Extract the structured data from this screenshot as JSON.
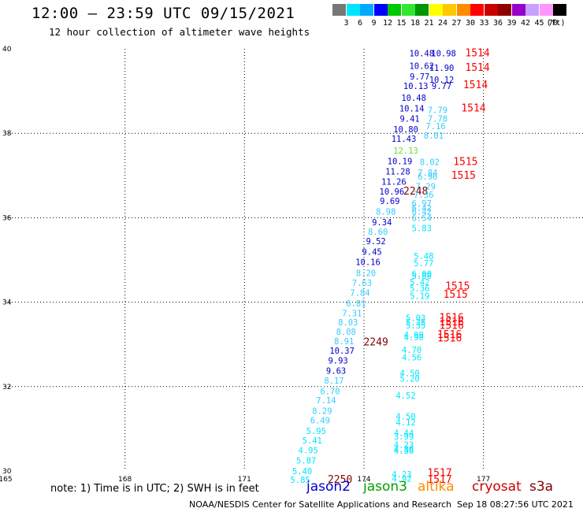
{
  "header": {
    "title": "12:00 – 23:59 UTC 09/15/2021",
    "subtitle": "12 hour collection of altimeter wave heights"
  },
  "color_scale": {
    "unit": "(ft)",
    "bins": [
      {
        "label": "3",
        "color": "#777777"
      },
      {
        "label": "6",
        "color": "#00e5ff"
      },
      {
        "label": "9",
        "color": "#00aaff"
      },
      {
        "label": "12",
        "color": "#0000ff"
      },
      {
        "label": "15",
        "color": "#00c800"
      },
      {
        "label": "18",
        "color": "#32e632"
      },
      {
        "label": "21",
        "color": "#009600"
      },
      {
        "label": "24",
        "color": "#ffff00"
      },
      {
        "label": "27",
        "color": "#ffc800"
      },
      {
        "label": "30",
        "color": "#ff8c00"
      },
      {
        "label": "33",
        "color": "#ff0000"
      },
      {
        "label": "36",
        "color": "#c80000"
      },
      {
        "label": "39",
        "color": "#8c0000"
      },
      {
        "label": "42",
        "color": "#9600c8"
      },
      {
        "label": "45",
        "color": "#c8a0ff"
      },
      {
        "label": "70",
        "color": "#ff96ff"
      },
      {
        "label": "",
        "color": "#000000"
      }
    ]
  },
  "map": {
    "lon_min": 165,
    "lon_max": 179.5,
    "lat_min": 30,
    "lat_max": 40,
    "lon_ticks": [
      "165",
      "168",
      "171",
      "174",
      "177"
    ],
    "lat_ticks": [
      "40",
      "38",
      "36",
      "34",
      "32",
      "30"
    ]
  },
  "wave_labels": [
    {
      "lon": 175.45,
      "lat": 39.82,
      "text": "10.48",
      "color": "#0000cc"
    },
    {
      "lon": 176.0,
      "lat": 39.82,
      "text": "10.98",
      "color": "#0000cc"
    },
    {
      "lon": 176.85,
      "lat": 39.82,
      "text": "1514",
      "color": "#ff0000"
    },
    {
      "lon": 175.45,
      "lat": 39.52,
      "text": "10.62",
      "color": "#0000cc"
    },
    {
      "lon": 175.95,
      "lat": 39.48,
      "text": "11.90",
      "color": "#0000cc"
    },
    {
      "lon": 176.85,
      "lat": 39.48,
      "text": "1514",
      "color": "#ff0000"
    },
    {
      "lon": 175.4,
      "lat": 39.27,
      "text": "9.77",
      "color": "#0000cc"
    },
    {
      "lon": 175.95,
      "lat": 39.2,
      "text": "10.12",
      "color": "#0000cc"
    },
    {
      "lon": 175.3,
      "lat": 39.05,
      "text": "10.13",
      "color": "#0000cc"
    },
    {
      "lon": 175.95,
      "lat": 39.05,
      "text": "9.77",
      "color": "#0000cc"
    },
    {
      "lon": 176.8,
      "lat": 39.07,
      "text": "1514",
      "color": "#ff0000"
    },
    {
      "lon": 175.25,
      "lat": 38.77,
      "text": "10.48",
      "color": "#0000cc"
    },
    {
      "lon": 175.2,
      "lat": 38.52,
      "text": "10.14",
      "color": "#0000cc"
    },
    {
      "lon": 175.85,
      "lat": 38.48,
      "text": "7.79",
      "color": "#33ccff"
    },
    {
      "lon": 176.75,
      "lat": 38.52,
      "text": "1514",
      "color": "#ff0000"
    },
    {
      "lon": 175.15,
      "lat": 38.27,
      "text": "9.41",
      "color": "#0000cc"
    },
    {
      "lon": 175.85,
      "lat": 38.27,
      "text": "7.78",
      "color": "#33ccff"
    },
    {
      "lon": 175.8,
      "lat": 38.1,
      "text": "7.16",
      "color": "#33ccff"
    },
    {
      "lon": 175.05,
      "lat": 38.02,
      "text": "10.80",
      "color": "#0000cc"
    },
    {
      "lon": 175.75,
      "lat": 37.87,
      "text": "8.01",
      "color": "#33ccff"
    },
    {
      "lon": 175.0,
      "lat": 37.8,
      "text": "11.43",
      "color": "#0000cc"
    },
    {
      "lon": 175.05,
      "lat": 37.52,
      "text": "12.13",
      "color": "#66dd33"
    },
    {
      "lon": 174.9,
      "lat": 37.27,
      "text": "10.19",
      "color": "#0000cc"
    },
    {
      "lon": 175.65,
      "lat": 37.25,
      "text": "8.02",
      "color": "#33ccff"
    },
    {
      "lon": 176.55,
      "lat": 37.25,
      "text": "1515",
      "color": "#ff0000"
    },
    {
      "lon": 174.85,
      "lat": 37.02,
      "text": "11.28",
      "color": "#0000cc"
    },
    {
      "lon": 175.6,
      "lat": 37.0,
      "text": "7.84",
      "color": "#33ccff"
    },
    {
      "lon": 175.6,
      "lat": 36.9,
      "text": "6.96",
      "color": "#33ccff"
    },
    {
      "lon": 176.5,
      "lat": 36.92,
      "text": "1515",
      "color": "#ff0000"
    },
    {
      "lon": 174.75,
      "lat": 36.78,
      "text": "11.26",
      "color": "#0000cc"
    },
    {
      "lon": 175.55,
      "lat": 36.67,
      "text": "7.29",
      "color": "#33ccff"
    },
    {
      "lon": 174.7,
      "lat": 36.55,
      "text": "10.96",
      "color": "#0000cc"
    },
    {
      "lon": 175.3,
      "lat": 36.55,
      "text": "2248",
      "color": "#800000"
    },
    {
      "lon": 175.5,
      "lat": 36.47,
      "text": "7.36",
      "color": "#33ccff"
    },
    {
      "lon": 174.65,
      "lat": 36.32,
      "text": "9.69",
      "color": "#0000cc"
    },
    {
      "lon": 175.45,
      "lat": 36.27,
      "text": "6.97",
      "color": "#33ccff"
    },
    {
      "lon": 175.45,
      "lat": 36.16,
      "text": "6.42",
      "color": "#33ccff"
    },
    {
      "lon": 174.55,
      "lat": 36.07,
      "text": "8.98",
      "color": "#33ccff"
    },
    {
      "lon": 175.45,
      "lat": 36.07,
      "text": "6.42",
      "color": "#33ccff"
    },
    {
      "lon": 175.45,
      "lat": 35.92,
      "text": "6.54",
      "color": "#33ccff"
    },
    {
      "lon": 174.45,
      "lat": 35.82,
      "text": "9.34",
      "color": "#0000cc"
    },
    {
      "lon": 175.45,
      "lat": 35.68,
      "text": "5.83",
      "color": "#00e5ff"
    },
    {
      "lon": 174.35,
      "lat": 35.6,
      "text": "8.60",
      "color": "#33ccff"
    },
    {
      "lon": 174.3,
      "lat": 35.37,
      "text": "9.52",
      "color": "#0000cc"
    },
    {
      "lon": 174.2,
      "lat": 35.12,
      "text": "9.45",
      "color": "#0000cc"
    },
    {
      "lon": 175.5,
      "lat": 35.02,
      "text": "5.48",
      "color": "#00e5ff"
    },
    {
      "lon": 174.1,
      "lat": 34.88,
      "text": "10.16",
      "color": "#0000cc"
    },
    {
      "lon": 175.5,
      "lat": 34.85,
      "text": "5.77",
      "color": "#00e5ff"
    },
    {
      "lon": 174.05,
      "lat": 34.62,
      "text": "8.20",
      "color": "#33ccff"
    },
    {
      "lon": 175.45,
      "lat": 34.6,
      "text": "6.00",
      "color": "#00e5ff"
    },
    {
      "lon": 175.45,
      "lat": 34.55,
      "text": "5.80",
      "color": "#00e5ff"
    },
    {
      "lon": 175.4,
      "lat": 34.4,
      "text": "5.42",
      "color": "#00e5ff"
    },
    {
      "lon": 173.95,
      "lat": 34.38,
      "text": "7.63",
      "color": "#33ccff"
    },
    {
      "lon": 175.4,
      "lat": 34.25,
      "text": "5.36",
      "color": "#00e5ff"
    },
    {
      "lon": 176.35,
      "lat": 34.3,
      "text": "1515",
      "color": "#ff0000"
    },
    {
      "lon": 173.9,
      "lat": 34.15,
      "text": "7.84",
      "color": "#33ccff"
    },
    {
      "lon": 175.4,
      "lat": 34.08,
      "text": "5.19",
      "color": "#00e5ff"
    },
    {
      "lon": 176.3,
      "lat": 34.1,
      "text": "1515",
      "color": "#ff0000"
    },
    {
      "lon": 173.8,
      "lat": 33.9,
      "text": "6.81",
      "color": "#33ccff"
    },
    {
      "lon": 173.7,
      "lat": 33.67,
      "text": "7.31",
      "color": "#33ccff"
    },
    {
      "lon": 175.3,
      "lat": 33.55,
      "text": "5.03",
      "color": "#00e5ff"
    },
    {
      "lon": 176.2,
      "lat": 33.55,
      "text": "1516",
      "color": "#ff0000"
    },
    {
      "lon": 173.6,
      "lat": 33.45,
      "text": "8.03",
      "color": "#33ccff"
    },
    {
      "lon": 175.3,
      "lat": 33.45,
      "text": "5.25",
      "color": "#00e5ff"
    },
    {
      "lon": 176.2,
      "lat": 33.45,
      "text": "1516",
      "color": "#ff0000"
    },
    {
      "lon": 175.3,
      "lat": 33.38,
      "text": "5.35",
      "color": "#00e5ff"
    },
    {
      "lon": 176.2,
      "lat": 33.37,
      "text": "1516",
      "color": "#ff0000"
    },
    {
      "lon": 173.55,
      "lat": 33.23,
      "text": "8.08",
      "color": "#33ccff"
    },
    {
      "lon": 175.25,
      "lat": 33.15,
      "text": "4.99",
      "color": "#00e5ff"
    },
    {
      "lon": 175.25,
      "lat": 33.1,
      "text": "4.90",
      "color": "#00e5ff"
    },
    {
      "lon": 176.15,
      "lat": 33.15,
      "text": "1516",
      "color": "#ff0000"
    },
    {
      "lon": 176.15,
      "lat": 33.07,
      "text": "1516",
      "color": "#ff0000"
    },
    {
      "lon": 173.5,
      "lat": 33.0,
      "text": "8.91",
      "color": "#33ccff"
    },
    {
      "lon": 174.3,
      "lat": 32.98,
      "text": "2249",
      "color": "#800000"
    },
    {
      "lon": 173.45,
      "lat": 32.78,
      "text": "10.37",
      "color": "#0000cc"
    },
    {
      "lon": 175.2,
      "lat": 32.8,
      "text": "4.70",
      "color": "#00e5ff"
    },
    {
      "lon": 175.2,
      "lat": 32.62,
      "text": "4.56",
      "color": "#00e5ff"
    },
    {
      "lon": 173.35,
      "lat": 32.55,
      "text": "9.93",
      "color": "#0000cc"
    },
    {
      "lon": 173.3,
      "lat": 32.3,
      "text": "9.63",
      "color": "#0000cc"
    },
    {
      "lon": 175.15,
      "lat": 32.25,
      "text": "4.50",
      "color": "#00e5ff"
    },
    {
      "lon": 175.15,
      "lat": 32.12,
      "text": "5.20",
      "color": "#00e5ff"
    },
    {
      "lon": 173.25,
      "lat": 32.07,
      "text": "8.17",
      "color": "#33ccff"
    },
    {
      "lon": 173.15,
      "lat": 31.82,
      "text": "6.70",
      "color": "#33ccff"
    },
    {
      "lon": 175.05,
      "lat": 31.72,
      "text": "4.52",
      "color": "#00e5ff"
    },
    {
      "lon": 173.05,
      "lat": 31.6,
      "text": "7.14",
      "color": "#33ccff"
    },
    {
      "lon": 172.95,
      "lat": 31.35,
      "text": "8.29",
      "color": "#33ccff"
    },
    {
      "lon": 175.05,
      "lat": 31.22,
      "text": "4.50",
      "color": "#00e5ff"
    },
    {
      "lon": 172.9,
      "lat": 31.13,
      "text": "6.49",
      "color": "#33ccff"
    },
    {
      "lon": 175.05,
      "lat": 31.08,
      "text": "4.12",
      "color": "#00e5ff"
    },
    {
      "lon": 172.8,
      "lat": 30.88,
      "text": "5.95",
      "color": "#00e5ff"
    },
    {
      "lon": 175.0,
      "lat": 30.83,
      "text": "4.44",
      "color": "#00e5ff"
    },
    {
      "lon": 175.0,
      "lat": 30.75,
      "text": "3.99",
      "color": "#00e5ff"
    },
    {
      "lon": 172.7,
      "lat": 30.65,
      "text": "5.41",
      "color": "#00e5ff"
    },
    {
      "lon": 175.0,
      "lat": 30.55,
      "text": "4.23",
      "color": "#00e5ff"
    },
    {
      "lon": 175.0,
      "lat": 30.45,
      "text": "4.86",
      "color": "#00e5ff"
    },
    {
      "lon": 175.0,
      "lat": 30.41,
      "text": "4.36",
      "color": "#00e5ff"
    },
    {
      "lon": 172.6,
      "lat": 30.42,
      "text": "4.95",
      "color": "#00e5ff"
    },
    {
      "lon": 172.55,
      "lat": 30.18,
      "text": "5.87",
      "color": "#00e5ff"
    },
    {
      "lon": 172.45,
      "lat": 29.93,
      "text": "5.40",
      "color": "#00e5ff"
    },
    {
      "lon": 174.95,
      "lat": 29.85,
      "text": "4.23",
      "color": "#00e5ff"
    },
    {
      "lon": 175.9,
      "lat": 29.88,
      "text": "1517",
      "color": "#ff0000"
    },
    {
      "lon": 174.95,
      "lat": 29.75,
      "text": "4.92",
      "color": "#00e5ff"
    },
    {
      "lon": 175.9,
      "lat": 29.72,
      "text": "1517",
      "color": "#ff0000"
    },
    {
      "lon": 172.4,
      "lat": 29.72,
      "text": "5.85",
      "color": "#00e5ff"
    },
    {
      "lon": 173.4,
      "lat": 29.72,
      "text": "2250",
      "color": "#800000"
    }
  ],
  "note": "note: 1) Time is in UTC; 2) SWH is in feet",
  "legend": [
    {
      "text": "jason2",
      "color": "#0000cc"
    },
    {
      "text": "jason3",
      "color": "#00a000"
    },
    {
      "text": "altika",
      "color": "#ff8c00"
    },
    {
      "text": "cryosat",
      "color": "#cc0000"
    },
    {
      "text": "s3a",
      "color": "#800000"
    }
  ],
  "footer": {
    "left": "NOAA/NESDIS Center for Satellite Applications and Research",
    "right": "Sep 18 08:27:56 UTC 2021"
  }
}
